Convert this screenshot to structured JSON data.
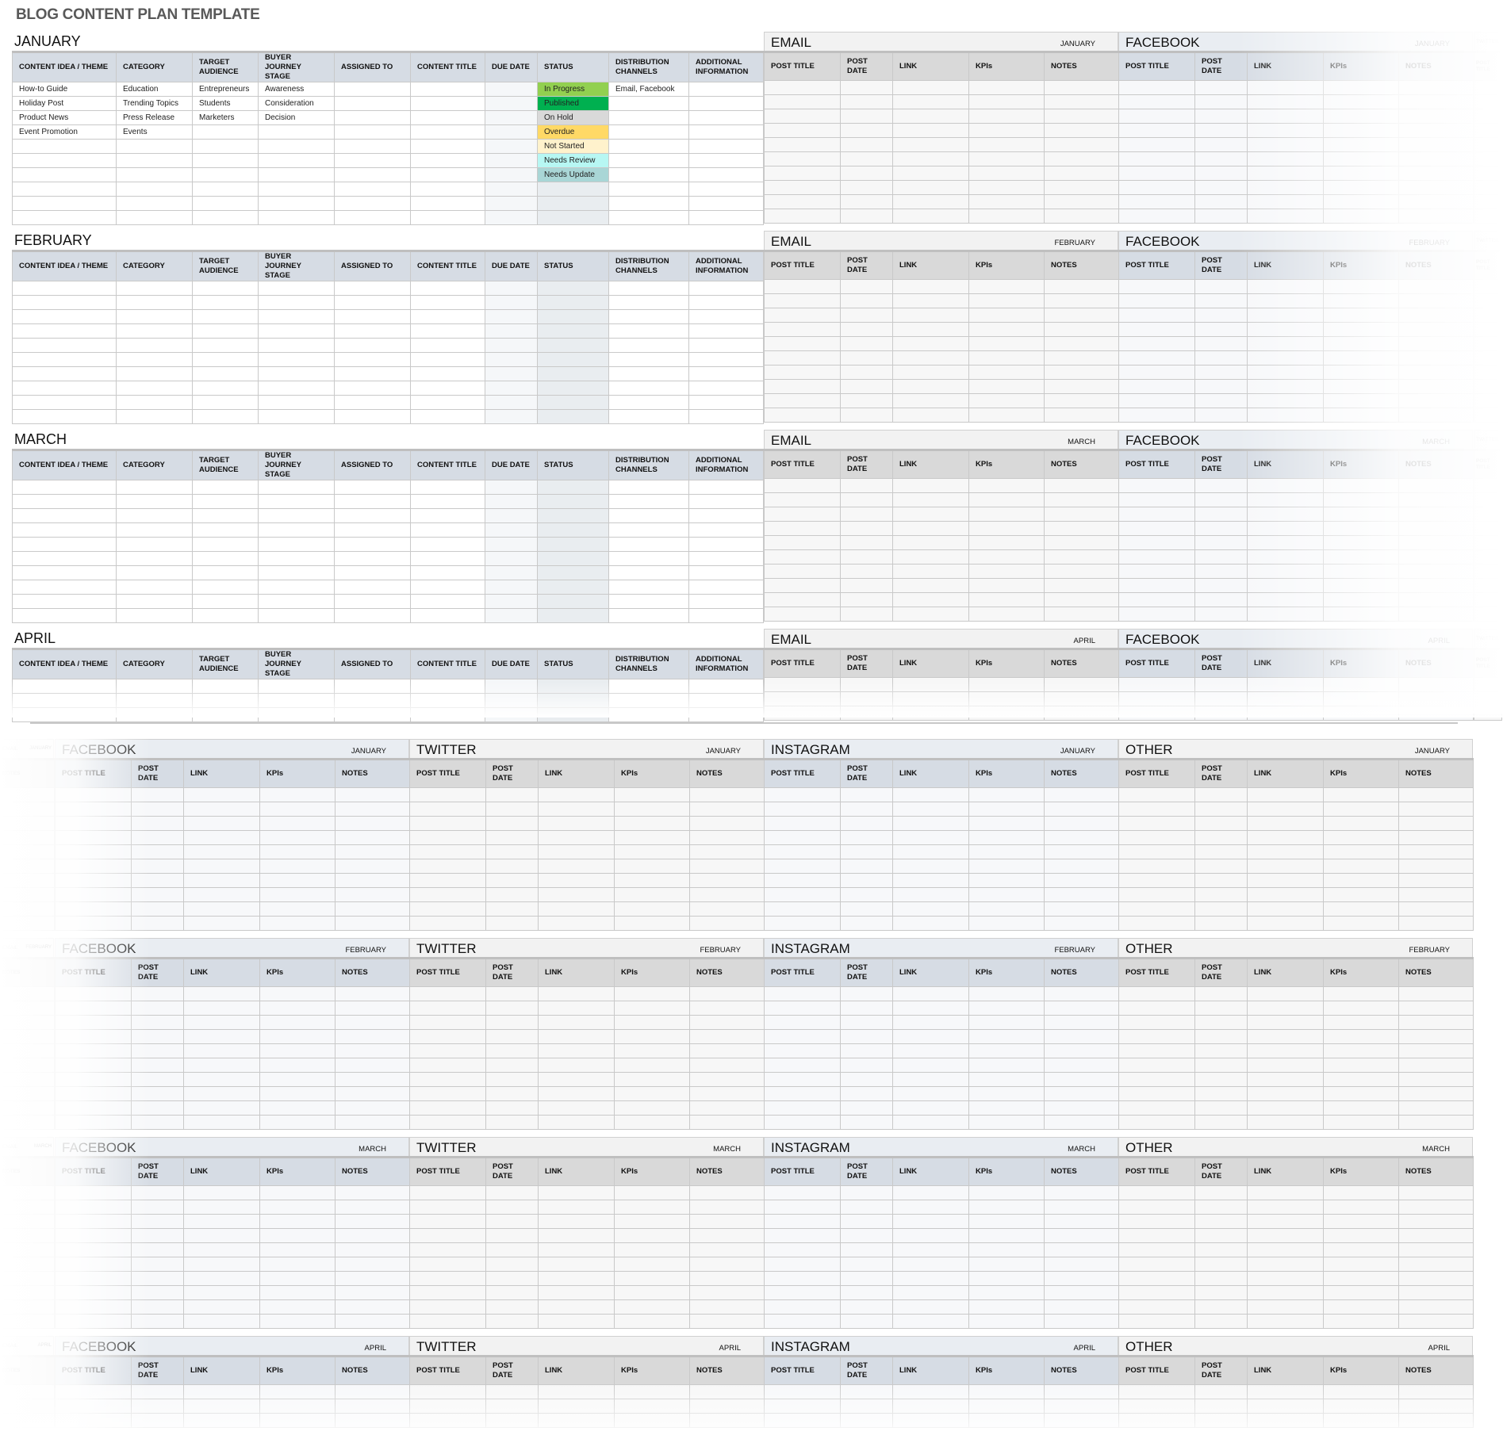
{
  "title": "BLOG CONTENT PLAN TEMPLATE",
  "months": [
    "JANUARY",
    "FEBRUARY",
    "MARCH",
    "APRIL"
  ],
  "blog_columns": [
    "CONTENT IDEA / THEME",
    "CATEGORY",
    "TARGET AUDIENCE",
    "BUYER JOURNEY STAGE",
    "ASSIGNED TO",
    "CONTENT TITLE",
    "DUE DATE",
    "STATUS",
    "DISTRIBUTION CHANNELS",
    "ADDITIONAL INFORMATION"
  ],
  "channel_columns": [
    "POST TITLE",
    "POST DATE",
    "LINK",
    "KPIs",
    "NOTES"
  ],
  "top_channels": [
    {
      "name": "EMAIL",
      "style": "gray"
    },
    {
      "name": "FACEBOOK",
      "style": "blue"
    },
    {
      "name": "TWITTER",
      "style": "gray"
    }
  ],
  "bottom_channels": [
    {
      "name": "EMAIL",
      "style": "gray"
    },
    {
      "name": "FACEBOOK",
      "style": "blue"
    },
    {
      "name": "TWITTER",
      "style": "gray"
    },
    {
      "name": "INSTAGRAM",
      "style": "blue"
    },
    {
      "name": "OTHER",
      "style": "gray"
    }
  ],
  "january_rows": [
    [
      "How-to Guide",
      "Education",
      "Entrepreneurs",
      "Awareness",
      "",
      "",
      "",
      "In Progress",
      "Email, Facebook",
      ""
    ],
    [
      "Holiday Post",
      "Trending Topics",
      "Students",
      "Consideration",
      "",
      "",
      "",
      "Published",
      "",
      ""
    ],
    [
      "Product News",
      "Press Release",
      "Marketers",
      "Decision",
      "",
      "",
      "",
      "On Hold",
      "",
      ""
    ],
    [
      "Event Promotion",
      "Events",
      "",
      "",
      "",
      "",
      "",
      "Overdue",
      "",
      ""
    ],
    [
      "",
      "",
      "",
      "",
      "",
      "",
      "",
      "Not Started",
      "",
      ""
    ],
    [
      "",
      "",
      "",
      "",
      "",
      "",
      "",
      "Needs Review",
      "",
      ""
    ],
    [
      "",
      "",
      "",
      "",
      "",
      "",
      "",
      "Needs Update",
      "",
      ""
    ]
  ],
  "status_colors": {
    "In Progress": "#92d050",
    "Published": "#00b050",
    "On Hold": "#d9d9d9",
    "Overdue": "#ffd966",
    "Not Started": "#fff2cc",
    "Needs Review": "#b7f7f3",
    "Needs Update": "#a9d6d6"
  }
}
